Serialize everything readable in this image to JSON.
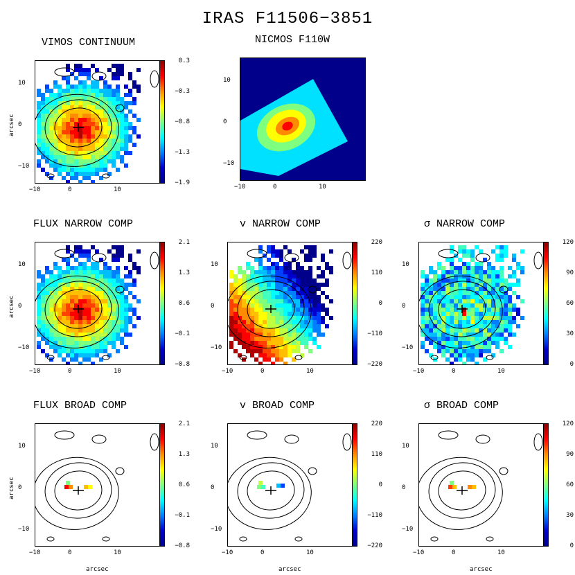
{
  "figure_title": "IRAS F11506−3851",
  "axis_label": "arcsec",
  "x_ticks": [
    "−10",
    "0",
    "10"
  ],
  "y_ticks": [
    "10",
    "0",
    "−10"
  ],
  "panels": [
    {
      "title": "VIMOS CONTINUUM",
      "cbar": [
        "0.3",
        "−0.3",
        "−0.8",
        "−1.3",
        "−1.9"
      ]
    },
    {
      "title": "NICMOS F110W",
      "cbar": []
    },
    {
      "title": "FLUX NARROW COMP",
      "cbar": [
        "2.1",
        "1.3",
        "0.6",
        "−0.1",
        "−0.8"
      ]
    },
    {
      "title": "v NARROW COMP",
      "cbar": [
        "220",
        "110",
        "0",
        "−110",
        "−220"
      ]
    },
    {
      "title": "σ NARROW COMP",
      "cbar": [
        "120",
        "90",
        "60",
        "30",
        "0"
      ]
    },
    {
      "title": "FLUX BROAD COMP",
      "cbar": [
        "2.1",
        "1.3",
        "0.6",
        "−0.1",
        "−0.8"
      ]
    },
    {
      "title": "v BROAD COMP",
      "cbar": [
        "220",
        "110",
        "0",
        "−110",
        "−220"
      ]
    },
    {
      "title": "σ BROAD COMP",
      "cbar": [
        "120",
        "90",
        "60",
        "30",
        "0"
      ]
    }
  ]
}
